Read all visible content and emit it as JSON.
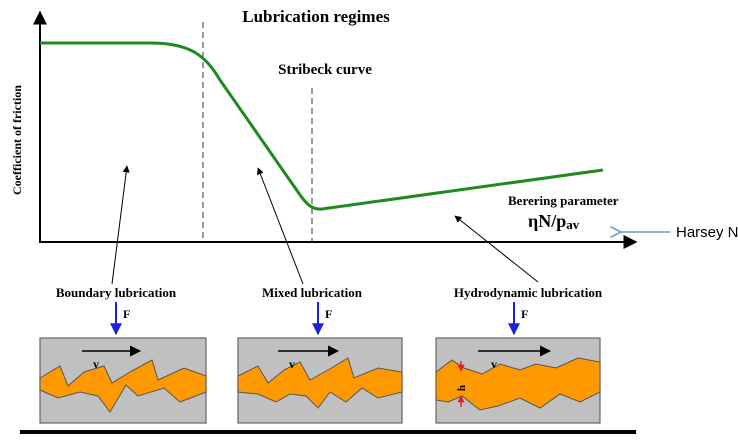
{
  "title": "Lubrication regimes",
  "curve_label": "Stribeck curve",
  "axes": {
    "ylabel": "Coefficient of friction",
    "xlabel": "Berering parameter",
    "param_main": "ηN/p",
    "param_sub": "av"
  },
  "side_note": "Harsey No.",
  "regimes": [
    {
      "label": "Boundary lubrication",
      "force": "F",
      "velocity": "v"
    },
    {
      "label": "Mixed lubrication",
      "force": "F",
      "velocity": "v"
    },
    {
      "label": "Hydrodynamic lubrication",
      "force": "F",
      "velocity": "v",
      "gap": "h"
    }
  ],
  "colors": {
    "curve": "#1f8a1f",
    "lubricant": "#ff9900",
    "surface": "#c0c0c0",
    "force_arrow": "#2020e0",
    "gap_marker": "#e02020",
    "note_arrow": "#6a9bd1"
  }
}
